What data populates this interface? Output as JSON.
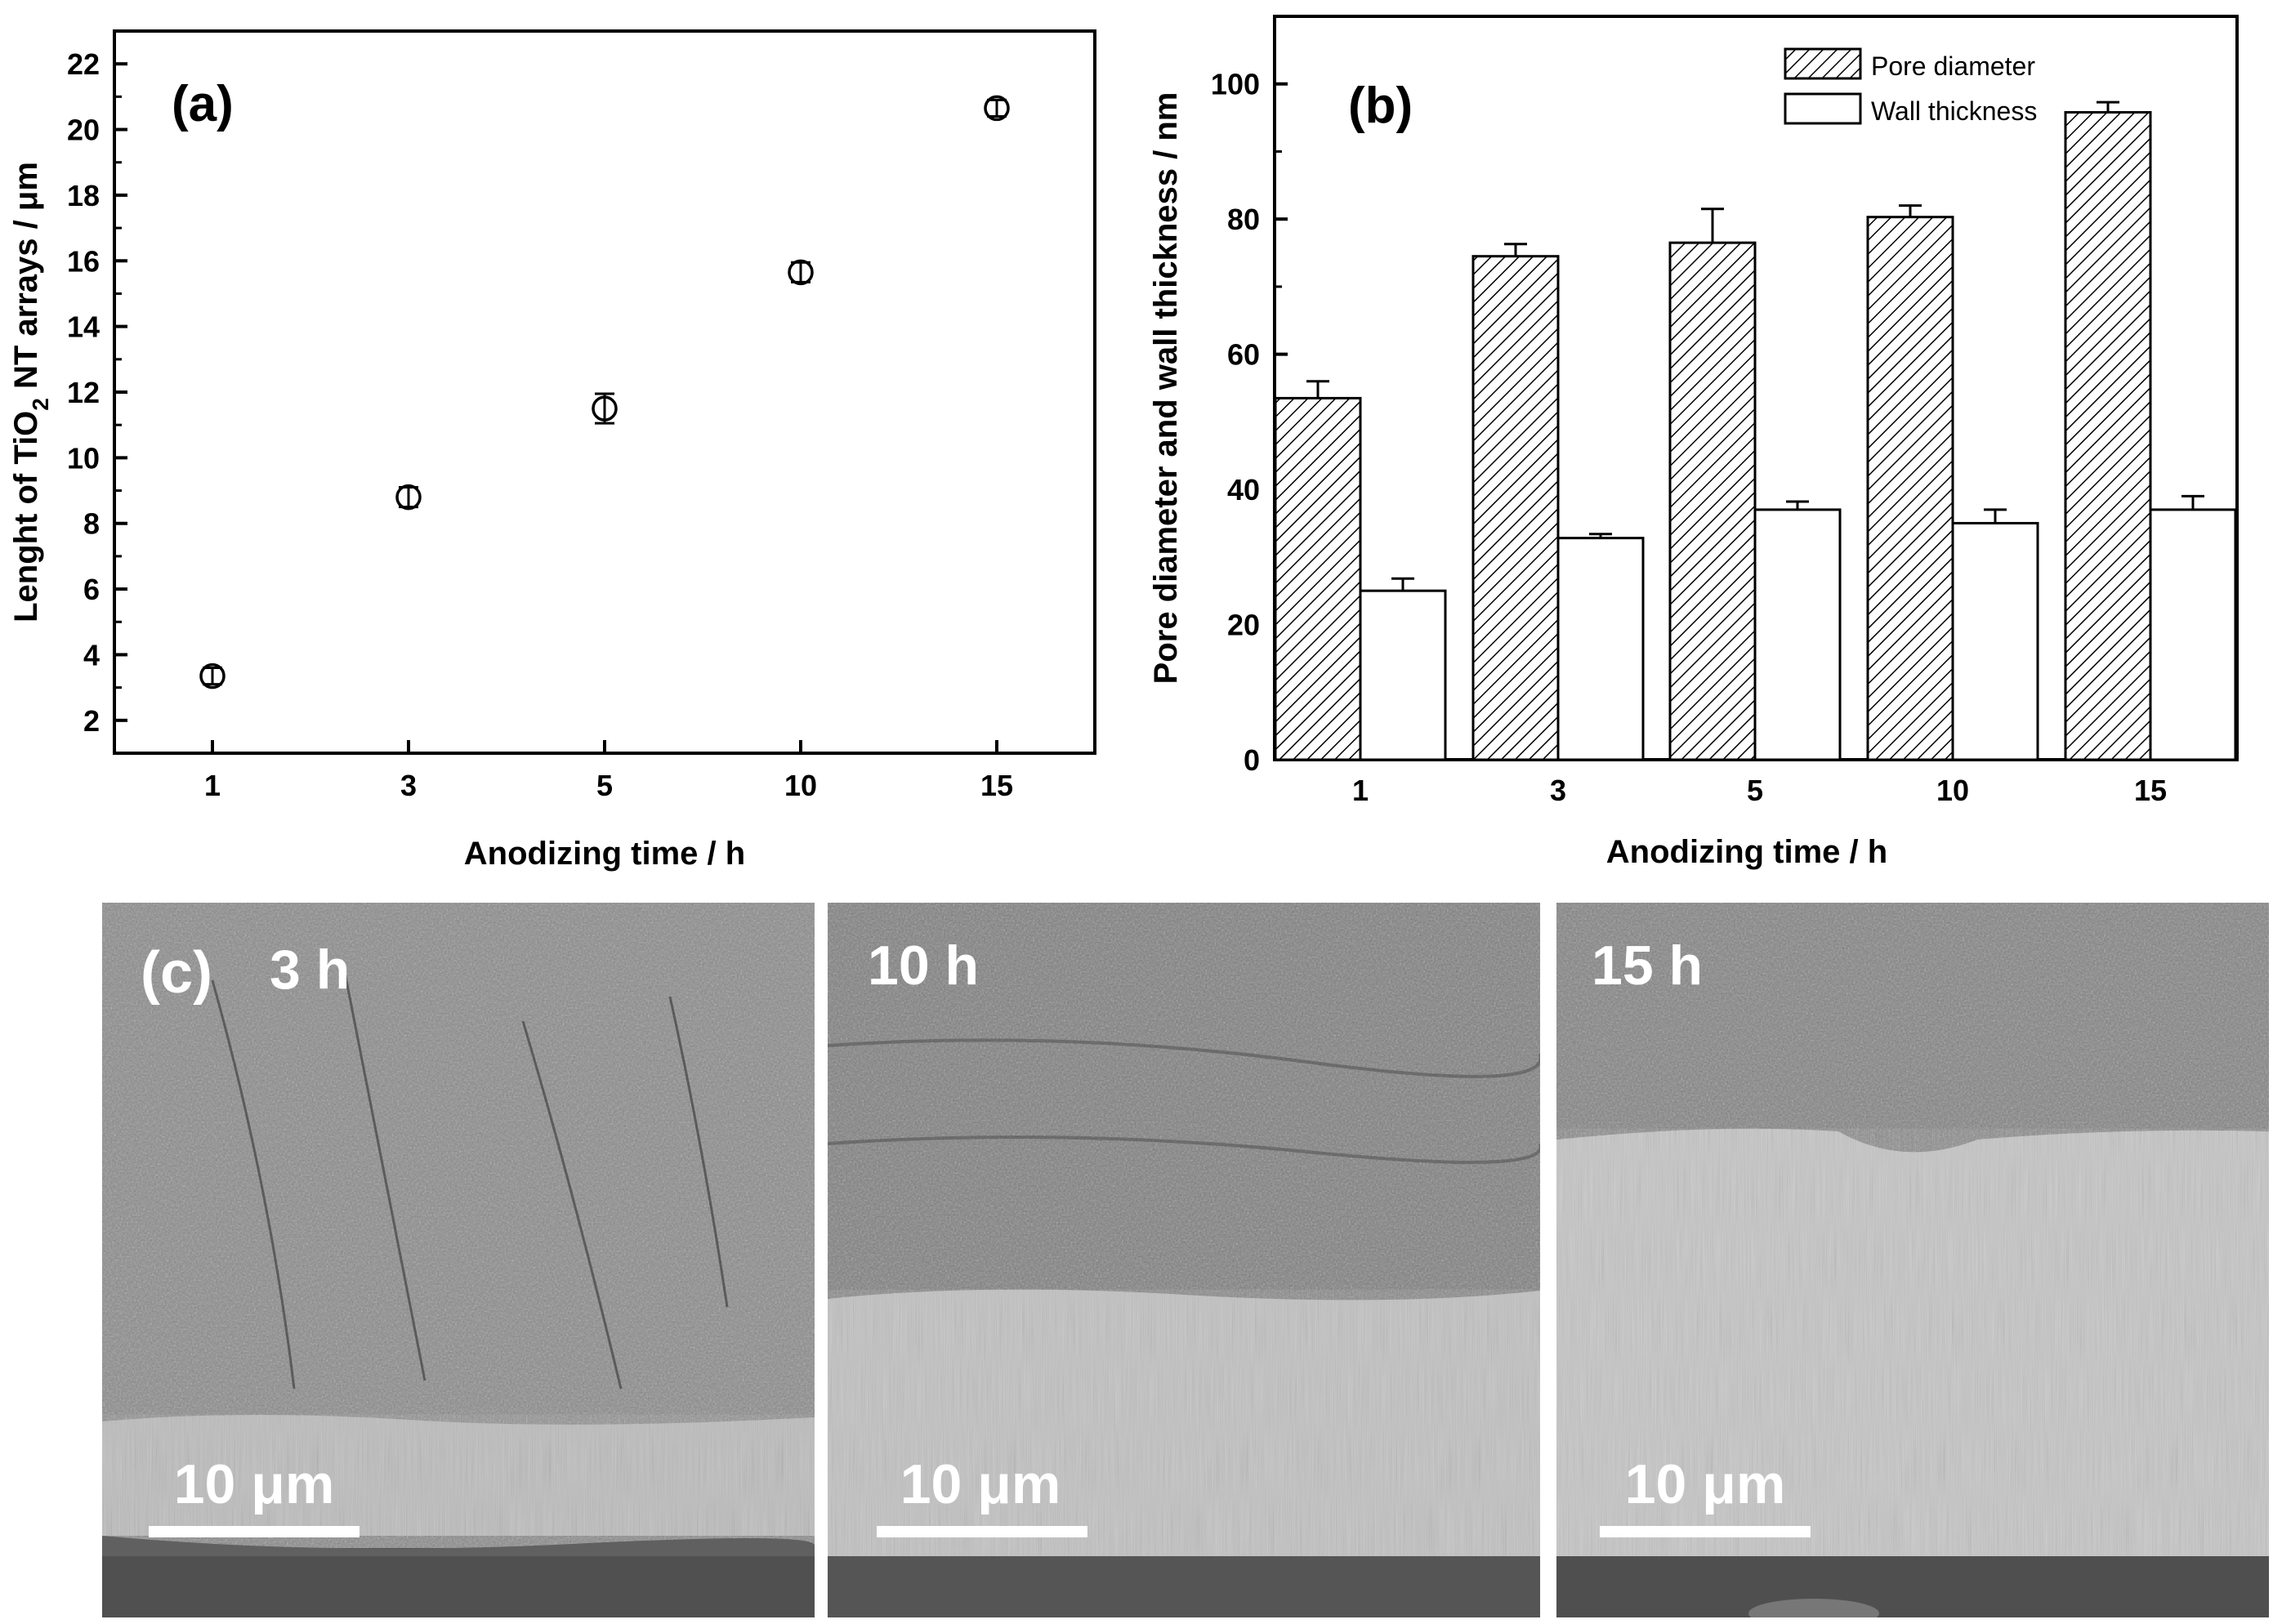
{
  "chart_data": [
    {
      "type": "scatter",
      "panel_label": "(a)",
      "categories": [
        "1",
        "3",
        "5",
        "10",
        "15"
      ],
      "values": [
        3.35,
        8.8,
        11.5,
        15.65,
        20.65
      ],
      "errors": [
        0.25,
        0.3,
        0.45,
        0.3,
        0.25
      ],
      "marker": "open circle",
      "ylim": [
        1,
        23
      ],
      "yticks": [
        "2",
        "4",
        "6",
        "8",
        "10",
        "12",
        "14",
        "16",
        "18",
        "20",
        "22"
      ],
      "ylabel_pre": "Lenght of TiO",
      "ylabel_sub": "2",
      "ylabel_post": " NT arrays / μm",
      "xlabel": "Anodizing time / h"
    },
    {
      "type": "bar",
      "panel_label": "(b)",
      "categories": [
        "1",
        "3",
        "5",
        "10",
        "15"
      ],
      "series": [
        {
          "name": "Pore diameter",
          "values": [
            53.5,
            74.5,
            76.5,
            80.3,
            95.8
          ],
          "errors": [
            2.5,
            1.8,
            5,
            1.7,
            1.5
          ],
          "fill": "hatched"
        },
        {
          "name": "Wall thickness",
          "values": [
            25,
            32.8,
            37,
            35,
            37
          ],
          "errors": [
            1.8,
            0.6,
            1.2,
            2,
            2
          ],
          "fill": "white"
        }
      ],
      "ylim": [
        0,
        110
      ],
      "yticks": [
        "0",
        "20",
        "40",
        "60",
        "80",
        "100"
      ],
      "ylabel": "Pore diameter and wall thickness / nm",
      "xlabel": "Anodizing time / h",
      "legend_position": "top-right"
    }
  ],
  "sem": {
    "panel_label": "(c)",
    "images": [
      {
        "time_label": "3 h",
        "scale_label": "10 μm"
      },
      {
        "time_label": "10 h",
        "scale_label": "10 μm"
      },
      {
        "time_label": "15 h",
        "scale_label": "10 μm"
      }
    ]
  }
}
